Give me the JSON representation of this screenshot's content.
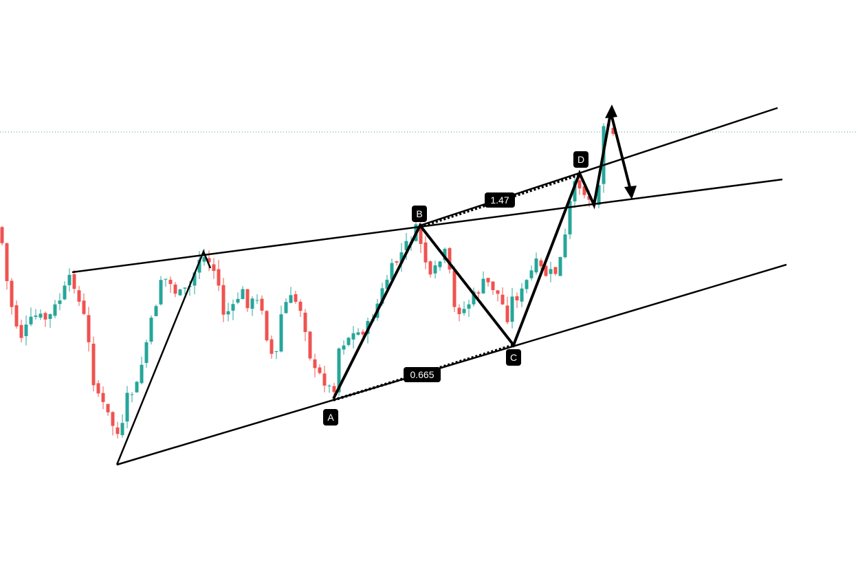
{
  "points": [
    "A",
    "B",
    "C",
    "D"
  ],
  "ratios": [
    1.47,
    0.665
  ]
}
